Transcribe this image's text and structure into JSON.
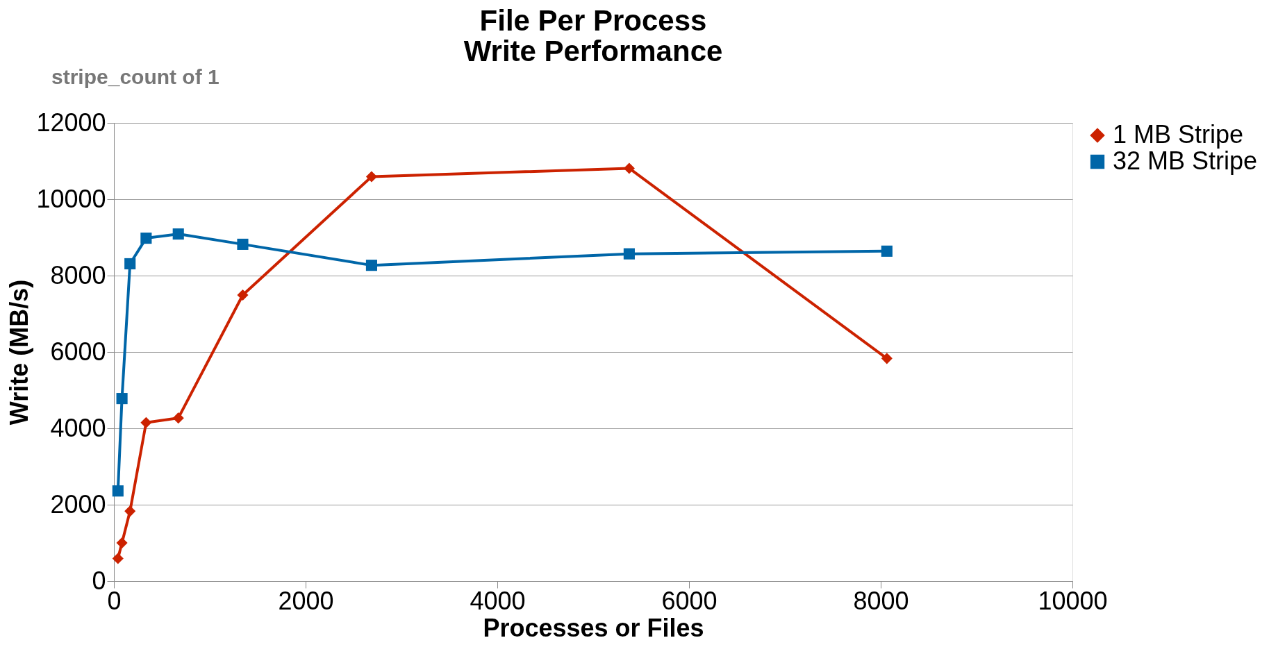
{
  "chart_data": {
    "type": "line",
    "title": "File Per Process\nWrite Performance",
    "xlabel": "Processes or Files",
    "ylabel": "Write (MB/s)",
    "x": [
      42,
      84,
      168,
      336,
      672,
      1344,
      2688,
      5376,
      8064
    ],
    "series": [
      {
        "name": "1 MB Stripe",
        "color": "#cc2200",
        "marker": "diamond",
        "values": [
          590,
          1000,
          1830,
          4150,
          4270,
          7490,
          10590,
          10810,
          5830
        ]
      },
      {
        "name": "32 MB Stripe",
        "color": "#0066a8",
        "marker": "square",
        "values": [
          2360,
          4780,
          8310,
          8980,
          9090,
          8820,
          8270,
          8570,
          8640
        ]
      }
    ],
    "xlim": [
      0,
      10000
    ],
    "xticks": [
      0,
      2000,
      4000,
      6000,
      8000,
      10000
    ],
    "ylim": [
      0,
      12000
    ],
    "yticks": [
      0,
      2000,
      4000,
      6000,
      8000,
      10000,
      12000
    ],
    "grid": "y",
    "legend": "right",
    "line_style": "solid",
    "annotations": [
      "stripe_count of 1"
    ]
  }
}
